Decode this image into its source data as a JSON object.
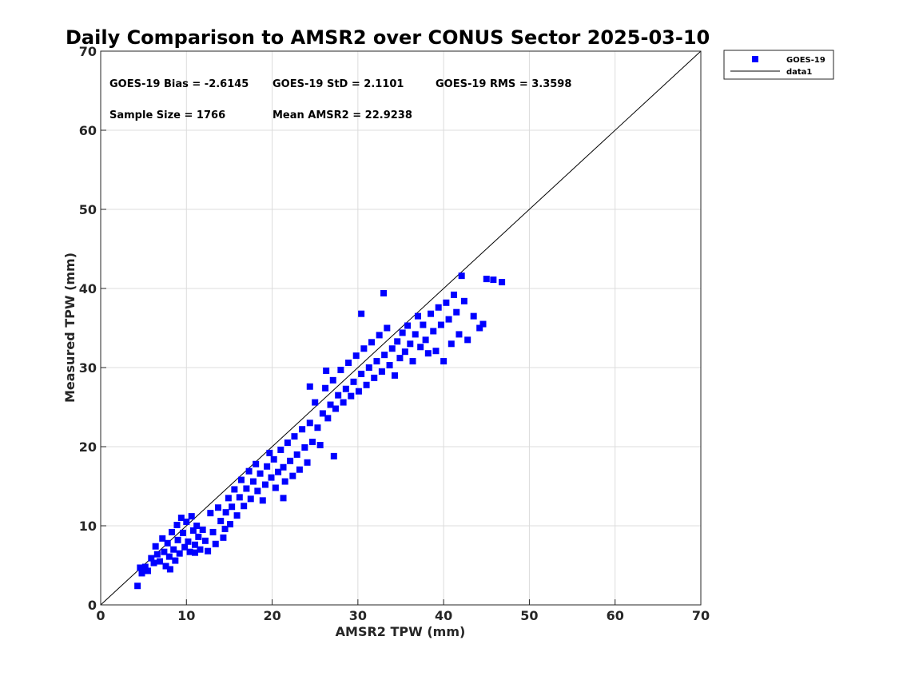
{
  "chart_data": {
    "type": "scatter",
    "title": "Daily Comparison to AMSR2 over CONUS Sector 2025-03-10",
    "xlabel": "AMSR2 TPW (mm)",
    "ylabel": "Measured TPW (mm)",
    "xlim": [
      0,
      70
    ],
    "ylim": [
      0,
      70
    ],
    "xticks": [
      "0",
      "10",
      "20",
      "30",
      "40",
      "50",
      "60",
      "70"
    ],
    "yticks": [
      "0",
      "10",
      "20",
      "30",
      "40",
      "50",
      "60",
      "70"
    ],
    "grid": true,
    "legend_position": "outside-top-right",
    "annotations": [
      "GOES-19 Bias = -2.6145",
      "GOES-19 StD = 2.1101",
      "GOES-19 RMS = 3.3598",
      "Sample Size = 1766",
      "Mean AMSR2 = 22.9238"
    ],
    "series": [
      {
        "name": "GOES-19",
        "color": "#0000ff",
        "marker": "square",
        "points": [
          [
            4.3,
            2.4
          ],
          [
            4.6,
            4.7
          ],
          [
            4.8,
            4.0
          ],
          [
            5.2,
            4.8
          ],
          [
            5.5,
            4.3
          ],
          [
            5.9,
            5.9
          ],
          [
            6.2,
            5.3
          ],
          [
            6.4,
            7.4
          ],
          [
            6.6,
            6.4
          ],
          [
            6.9,
            5.5
          ],
          [
            7.2,
            8.4
          ],
          [
            7.4,
            6.7
          ],
          [
            7.6,
            4.9
          ],
          [
            7.8,
            7.8
          ],
          [
            8.0,
            6.1
          ],
          [
            8.1,
            4.5
          ],
          [
            8.3,
            9.2
          ],
          [
            8.5,
            7.0
          ],
          [
            8.7,
            5.6
          ],
          [
            8.9,
            10.1
          ],
          [
            9.0,
            8.2
          ],
          [
            9.2,
            6.5
          ],
          [
            9.4,
            11.0
          ],
          [
            9.6,
            9.1
          ],
          [
            9.8,
            7.3
          ],
          [
            10.0,
            10.5
          ],
          [
            10.2,
            8.0
          ],
          [
            10.4,
            6.7
          ],
          [
            10.6,
            11.2
          ],
          [
            10.8,
            9.4
          ],
          [
            11.0,
            7.6
          ],
          [
            11.2,
            10.0
          ],
          [
            11.4,
            8.6
          ],
          [
            11.6,
            7.0
          ],
          [
            11.9,
            9.5
          ],
          [
            12.2,
            8.1
          ],
          [
            12.5,
            6.8
          ],
          [
            12.8,
            11.6
          ],
          [
            13.1,
            9.2
          ],
          [
            13.4,
            7.7
          ],
          [
            13.7,
            12.3
          ],
          [
            14.0,
            10.6
          ],
          [
            14.3,
            8.5
          ],
          [
            14.6,
            11.7
          ],
          [
            14.9,
            13.5
          ],
          [
            15.1,
            10.2
          ],
          [
            15.3,
            12.4
          ],
          [
            15.6,
            14.6
          ],
          [
            15.9,
            11.3
          ],
          [
            16.2,
            13.6
          ],
          [
            16.4,
            15.8
          ],
          [
            16.7,
            12.5
          ],
          [
            17.0,
            14.7
          ],
          [
            17.3,
            16.9
          ],
          [
            17.5,
            13.4
          ],
          [
            17.8,
            15.6
          ],
          [
            18.1,
            17.8
          ],
          [
            18.3,
            14.4
          ],
          [
            18.6,
            16.6
          ],
          [
            18.9,
            13.2
          ],
          [
            19.2,
            15.2
          ],
          [
            19.4,
            17.5
          ],
          [
            19.7,
            19.2
          ],
          [
            19.9,
            16.1
          ],
          [
            20.2,
            18.4
          ],
          [
            20.4,
            14.8
          ],
          [
            20.7,
            16.8
          ],
          [
            21.0,
            19.6
          ],
          [
            21.3,
            17.4
          ],
          [
            21.5,
            15.6
          ],
          [
            21.8,
            20.5
          ],
          [
            22.1,
            18.2
          ],
          [
            22.4,
            16.3
          ],
          [
            22.6,
            21.3
          ],
          [
            22.9,
            19.0
          ],
          [
            23.2,
            17.1
          ],
          [
            23.5,
            22.2
          ],
          [
            23.8,
            19.9
          ],
          [
            24.1,
            18.0
          ],
          [
            24.4,
            23.0
          ],
          [
            24.7,
            20.6
          ],
          [
            25.0,
            25.6
          ],
          [
            25.3,
            22.4
          ],
          [
            25.6,
            20.2
          ],
          [
            25.9,
            24.2
          ],
          [
            26.2,
            27.4
          ],
          [
            26.5,
            23.6
          ],
          [
            26.8,
            25.3
          ],
          [
            27.1,
            28.4
          ],
          [
            27.4,
            24.8
          ],
          [
            27.7,
            26.5
          ],
          [
            28.0,
            29.7
          ],
          [
            28.3,
            25.6
          ],
          [
            28.6,
            27.3
          ],
          [
            28.9,
            30.6
          ],
          [
            29.2,
            26.4
          ],
          [
            29.5,
            28.2
          ],
          [
            29.8,
            31.5
          ],
          [
            30.1,
            27.0
          ],
          [
            30.4,
            29.2
          ],
          [
            30.7,
            32.4
          ],
          [
            31.0,
            27.8
          ],
          [
            31.3,
            30.0
          ],
          [
            31.6,
            33.2
          ],
          [
            31.9,
            28.7
          ],
          [
            32.2,
            30.8
          ],
          [
            32.5,
            34.1
          ],
          [
            32.8,
            29.5
          ],
          [
            33.1,
            31.6
          ],
          [
            33.4,
            35.0
          ],
          [
            33.7,
            30.3
          ],
          [
            34.0,
            32.4
          ],
          [
            34.3,
            29.0
          ],
          [
            34.6,
            33.3
          ],
          [
            34.9,
            31.2
          ],
          [
            35.2,
            34.4
          ],
          [
            35.5,
            32.0
          ],
          [
            35.8,
            35.3
          ],
          [
            36.1,
            33.0
          ],
          [
            36.4,
            30.8
          ],
          [
            36.7,
            34.2
          ],
          [
            37.0,
            36.5
          ],
          [
            37.3,
            32.6
          ],
          [
            37.6,
            35.4
          ],
          [
            37.9,
            33.5
          ],
          [
            38.2,
            31.8
          ],
          [
            38.5,
            36.8
          ],
          [
            38.8,
            34.6
          ],
          [
            39.1,
            32.1
          ],
          [
            39.4,
            37.6
          ],
          [
            39.7,
            35.4
          ],
          [
            40.0,
            30.8
          ],
          [
            40.3,
            38.2
          ],
          [
            40.6,
            36.1
          ],
          [
            40.9,
            33.0
          ],
          [
            41.2,
            39.2
          ],
          [
            41.5,
            37.0
          ],
          [
            41.8,
            34.2
          ],
          [
            42.1,
            41.6
          ],
          [
            42.4,
            38.4
          ],
          [
            42.8,
            33.5
          ],
          [
            43.5,
            36.5
          ],
          [
            44.2,
            35.0
          ],
          [
            44.6,
            35.5
          ],
          [
            45.0,
            41.2
          ],
          [
            45.8,
            41.1
          ],
          [
            46.8,
            40.8
          ],
          [
            33.0,
            39.4
          ],
          [
            30.4,
            36.8
          ],
          [
            27.2,
            18.8
          ],
          [
            21.3,
            13.5
          ],
          [
            14.5,
            9.6
          ],
          [
            11.0,
            6.6
          ],
          [
            24.4,
            27.6
          ],
          [
            26.3,
            29.6
          ]
        ]
      },
      {
        "name": "data1",
        "color": "#000000",
        "type": "line",
        "points": [
          [
            0,
            0
          ],
          [
            70,
            70
          ]
        ]
      }
    ]
  }
}
